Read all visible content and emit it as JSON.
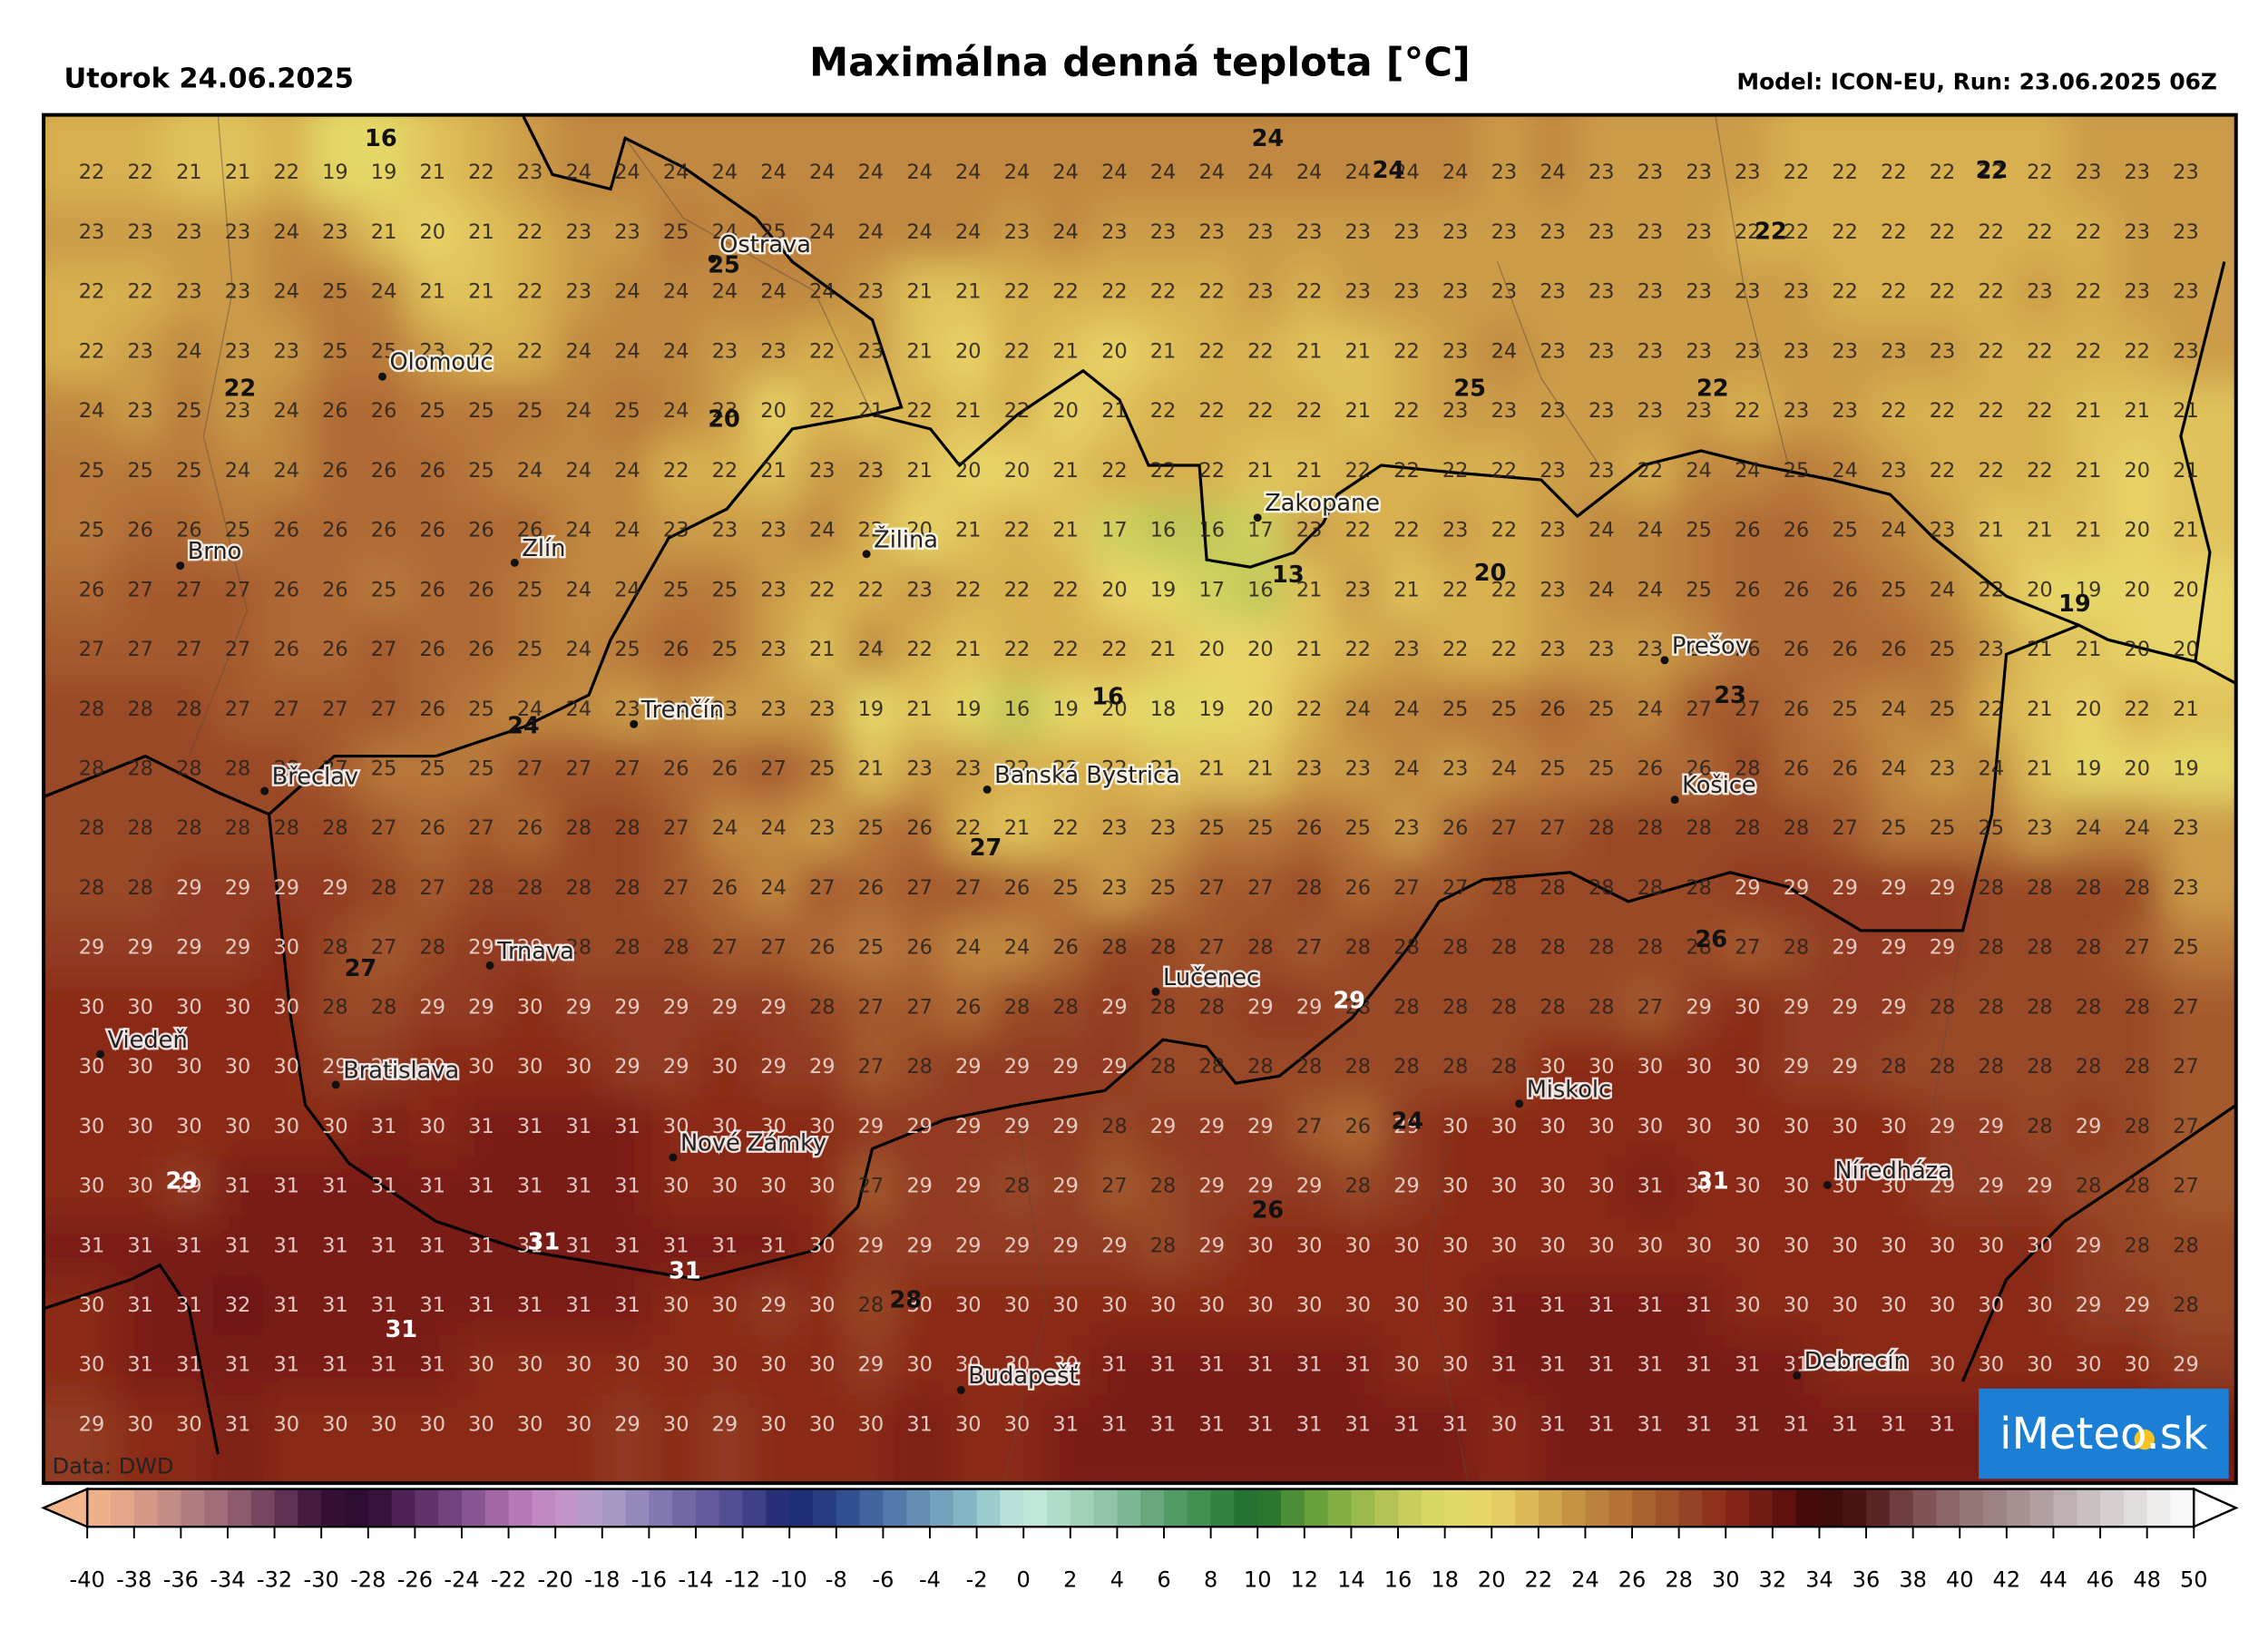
{
  "header": {
    "date": "Utorok 24.06.2025",
    "title": "Maximálna denná teplota [°C]",
    "model": "Model: ICON-EU, Run: 23.06.2025 06Z"
  },
  "grid": [
    [
      22,
      22,
      21,
      21,
      22,
      19,
      19,
      21,
      22,
      23,
      24,
      24,
      24,
      24,
      24,
      24,
      24,
      24,
      24,
      24,
      24,
      24,
      24,
      24,
      24,
      24,
      24,
      24,
      24,
      23,
      24,
      23,
      23,
      23,
      23,
      22,
      22,
      22,
      22,
      22,
      22,
      23,
      23,
      23
    ],
    [
      23,
      23,
      23,
      23,
      24,
      23,
      21,
      20,
      21,
      22,
      23,
      23,
      25,
      24,
      25,
      24,
      24,
      24,
      24,
      23,
      24,
      23,
      23,
      23,
      23,
      23,
      23,
      23,
      23,
      23,
      23,
      23,
      23,
      23,
      22,
      22,
      22,
      22,
      22,
      22,
      22,
      22,
      23,
      23
    ],
    [
      22,
      22,
      23,
      23,
      24,
      25,
      24,
      21,
      21,
      22,
      23,
      24,
      24,
      24,
      24,
      24,
      23,
      21,
      21,
      22,
      22,
      22,
      22,
      22,
      23,
      22,
      23,
      23,
      23,
      23,
      23,
      23,
      23,
      23,
      23,
      23,
      22,
      22,
      22,
      22,
      23,
      22,
      23,
      23
    ],
    [
      22,
      23,
      24,
      23,
      23,
      25,
      25,
      23,
      22,
      22,
      24,
      24,
      24,
      23,
      23,
      22,
      23,
      21,
      20,
      22,
      21,
      20,
      21,
      22,
      22,
      21,
      21,
      22,
      23,
      24,
      23,
      23,
      23,
      23,
      23,
      23,
      23,
      23,
      23,
      22,
      22,
      22,
      22,
      23
    ],
    [
      24,
      23,
      25,
      23,
      24,
      26,
      26,
      25,
      25,
      25,
      24,
      25,
      24,
      23,
      20,
      22,
      21,
      22,
      21,
      22,
      20,
      21,
      22,
      22,
      22,
      22,
      21,
      22,
      23,
      23,
      23,
      23,
      23,
      23,
      22,
      23,
      23,
      22,
      22,
      22,
      22,
      21,
      21,
      21
    ],
    [
      25,
      25,
      25,
      24,
      24,
      26,
      26,
      26,
      25,
      24,
      24,
      24,
      22,
      22,
      21,
      23,
      23,
      21,
      20,
      20,
      21,
      22,
      22,
      22,
      21,
      21,
      22,
      22,
      22,
      22,
      23,
      23,
      22,
      24,
      24,
      25,
      24,
      23,
      22,
      22,
      22,
      21,
      20,
      21
    ],
    [
      25,
      26,
      26,
      25,
      26,
      26,
      26,
      26,
      26,
      26,
      24,
      24,
      23,
      23,
      23,
      24,
      22,
      20,
      21,
      22,
      21,
      17,
      16,
      16,
      17,
      23,
      22,
      22,
      23,
      22,
      23,
      24,
      24,
      25,
      26,
      26,
      25,
      24,
      23,
      21,
      21,
      21,
      20,
      21
    ],
    [
      26,
      27,
      27,
      27,
      26,
      26,
      25,
      26,
      26,
      25,
      24,
      24,
      25,
      25,
      23,
      22,
      22,
      23,
      22,
      22,
      22,
      20,
      19,
      17,
      16,
      21,
      23,
      21,
      22,
      22,
      23,
      24,
      24,
      25,
      26,
      26,
      26,
      25,
      24,
      22,
      20,
      19,
      20,
      20
    ],
    [
      27,
      27,
      27,
      27,
      26,
      26,
      27,
      26,
      26,
      25,
      24,
      25,
      26,
      25,
      23,
      21,
      24,
      22,
      21,
      22,
      22,
      22,
      21,
      20,
      20,
      21,
      22,
      23,
      22,
      22,
      23,
      23,
      23,
      24,
      26,
      26,
      26,
      26,
      25,
      23,
      21,
      21,
      20,
      20
    ],
    [
      28,
      28,
      28,
      27,
      27,
      27,
      27,
      26,
      25,
      24,
      24,
      23,
      24,
      23,
      23,
      23,
      19,
      21,
      19,
      16,
      19,
      20,
      18,
      19,
      20,
      22,
      24,
      24,
      25,
      25,
      26,
      25,
      24,
      27,
      27,
      26,
      25,
      24,
      25,
      22,
      21,
      20,
      22,
      21
    ],
    [
      28,
      28,
      28,
      28,
      28,
      27,
      25,
      25,
      25,
      27,
      27,
      27,
      26,
      26,
      27,
      25,
      21,
      23,
      23,
      22,
      22,
      22,
      21,
      21,
      21,
      23,
      23,
      24,
      23,
      24,
      25,
      25,
      26,
      26,
      28,
      26,
      26,
      24,
      23,
      24,
      21,
      19,
      20,
      19
    ],
    [
      28,
      28,
      28,
      28,
      28,
      28,
      27,
      26,
      27,
      26,
      28,
      28,
      27,
      24,
      24,
      23,
      25,
      26,
      22,
      21,
      22,
      23,
      23,
      25,
      25,
      26,
      25,
      23,
      26,
      27,
      27,
      28,
      28,
      28,
      28,
      28,
      27,
      25,
      25,
      25,
      23,
      24,
      24,
      23
    ],
    [
      28,
      28,
      29,
      29,
      29,
      29,
      28,
      27,
      28,
      28,
      28,
      28,
      27,
      26,
      24,
      27,
      26,
      27,
      27,
      26,
      25,
      23,
      25,
      27,
      27,
      28,
      26,
      27,
      27,
      28,
      28,
      28,
      28,
      28,
      29,
      29,
      29,
      29,
      29,
      28,
      28,
      28,
      28,
      23
    ],
    [
      29,
      29,
      29,
      29,
      30,
      28,
      27,
      28,
      29,
      29,
      28,
      28,
      28,
      27,
      27,
      26,
      25,
      26,
      24,
      24,
      26,
      28,
      28,
      27,
      28,
      27,
      28,
      28,
      28,
      28,
      28,
      28,
      28,
      28,
      27,
      28,
      29,
      29,
      29,
      28,
      28,
      28,
      27,
      25
    ],
    [
      30,
      30,
      30,
      30,
      30,
      28,
      28,
      29,
      29,
      30,
      29,
      29,
      29,
      29,
      29,
      28,
      27,
      27,
      26,
      28,
      28,
      29,
      28,
      28,
      29,
      29,
      28,
      28,
      28,
      28,
      28,
      28,
      27,
      29,
      30,
      29,
      29,
      29,
      28,
      28,
      28,
      28,
      28,
      27
    ],
    [
      30,
      30,
      30,
      30,
      30,
      29,
      29,
      30,
      30,
      30,
      30,
      29,
      29,
      30,
      29,
      29,
      27,
      28,
      29,
      29,
      29,
      29,
      28,
      28,
      28,
      28,
      28,
      28,
      28,
      28,
      30,
      30,
      30,
      30,
      30,
      29,
      29,
      28,
      28,
      28,
      28,
      28,
      28,
      27
    ],
    [
      30,
      30,
      30,
      30,
      30,
      30,
      31,
      30,
      31,
      31,
      31,
      31,
      30,
      30,
      30,
      30,
      29,
      29,
      29,
      29,
      29,
      28,
      29,
      29,
      29,
      27,
      26,
      29,
      30,
      30,
      30,
      30,
      30,
      30,
      30,
      30,
      30,
      30,
      29,
      29,
      28,
      29,
      28,
      27
    ],
    [
      30,
      30,
      29,
      31,
      31,
      31,
      31,
      31,
      31,
      31,
      31,
      31,
      30,
      30,
      30,
      30,
      27,
      29,
      29,
      28,
      29,
      27,
      28,
      29,
      29,
      29,
      28,
      29,
      30,
      30,
      30,
      30,
      31,
      30,
      30,
      30,
      30,
      30,
      29,
      29,
      29,
      28,
      28,
      27
    ],
    [
      31,
      31,
      31,
      31,
      31,
      31,
      31,
      31,
      31,
      31,
      31,
      31,
      31,
      31,
      31,
      30,
      29,
      29,
      29,
      29,
      29,
      29,
      28,
      29,
      30,
      30,
      30,
      30,
      30,
      30,
      30,
      30,
      30,
      30,
      30,
      30,
      30,
      30,
      30,
      30,
      30,
      29,
      28,
      28
    ],
    [
      30,
      31,
      31,
      32,
      31,
      31,
      31,
      31,
      31,
      31,
      31,
      31,
      30,
      30,
      29,
      30,
      28,
      30,
      30,
      30,
      30,
      30,
      30,
      30,
      30,
      30,
      30,
      30,
      30,
      31,
      31,
      31,
      31,
      31,
      30,
      30,
      30,
      30,
      30,
      30,
      30,
      29,
      29,
      28
    ],
    [
      30,
      31,
      31,
      31,
      31,
      31,
      31,
      31,
      30,
      30,
      30,
      30,
      30,
      30,
      30,
      30,
      29,
      30,
      30,
      30,
      30,
      31,
      31,
      31,
      31,
      31,
      31,
      30,
      30,
      31,
      31,
      31,
      31,
      31,
      31,
      31,
      30,
      30,
      30,
      30,
      30,
      30,
      30,
      29
    ],
    [
      29,
      30,
      30,
      31,
      30,
      30,
      30,
      30,
      30,
      30,
      30,
      29,
      30,
      29,
      30,
      30,
      30,
      31,
      30,
      30,
      31,
      31,
      31,
      31,
      31,
      31,
      31,
      31,
      31,
      30,
      31,
      31,
      31,
      31,
      31,
      31,
      31,
      31,
      31
    ]
  ],
  "contour_labels": [
    16,
    24,
    24,
    22,
    25,
    22,
    22,
    20,
    25,
    22,
    13,
    20,
    19,
    16,
    24,
    23,
    27,
    26,
    27,
    29,
    24,
    29,
    31,
    26,
    31,
    31,
    28,
    31
  ],
  "cities": [
    "Ostrava",
    "Olomouc",
    "Brno",
    "Zlín",
    "Žilina",
    "Zakopane",
    "Trenčín",
    "Břeclav",
    "Banská Bystrica",
    "Prešov",
    "Košice",
    "Trnava",
    "Lučenec",
    "Viedeň",
    "Bratislava",
    "Miskolc",
    "Nové Zámky",
    "Níredháza",
    "Debrecín",
    "Budapešť"
  ],
  "source": "Data: DWD",
  "logo": "iMeteo.sk",
  "colorbar": {
    "ticks": [
      -40,
      -38,
      -36,
      -34,
      -32,
      -30,
      -28,
      -26,
      -24,
      -22,
      -20,
      -18,
      -16,
      -14,
      -12,
      -10,
      -8,
      -6,
      -4,
      -2,
      0,
      2,
      4,
      6,
      8,
      10,
      12,
      14,
      16,
      18,
      20,
      22,
      24,
      26,
      28,
      30,
      32,
      34,
      36,
      38,
      40,
      42,
      44,
      46,
      48,
      50
    ],
    "colors": [
      "#f2b58c",
      "#e0a088",
      "#b98584",
      "#9a6474",
      "#6a3a5c",
      "#3a1038",
      "#2a0a30",
      "#5a2a60",
      "#7a4a88",
      "#b070b0",
      "#c890c8",
      "#b0a0c8",
      "#8a80b8",
      "#6a60a0",
      "#4a4890",
      "#1a2670",
      "#2a4488",
      "#4a70a8",
      "#6a98b8",
      "#8ac0c8",
      "#c8ece0",
      "#a8d8c0",
      "#88c0a0",
      "#5aa070",
      "#3a8a48",
      "#1e6a2a",
      "#5a9a38",
      "#90b448",
      "#c0c858",
      "#e0dc68",
      "#e8d468",
      "#d8b050",
      "#c08840",
      "#b06a34",
      "#9a4a28",
      "#8a2a18",
      "#6a1412",
      "#3a0606",
      "#501818",
      "#7a4a4a",
      "#907070",
      "#a08888",
      "#b8a8a8",
      "#d0c8c8",
      "#e8e4e4",
      "#ffffff"
    ]
  }
}
